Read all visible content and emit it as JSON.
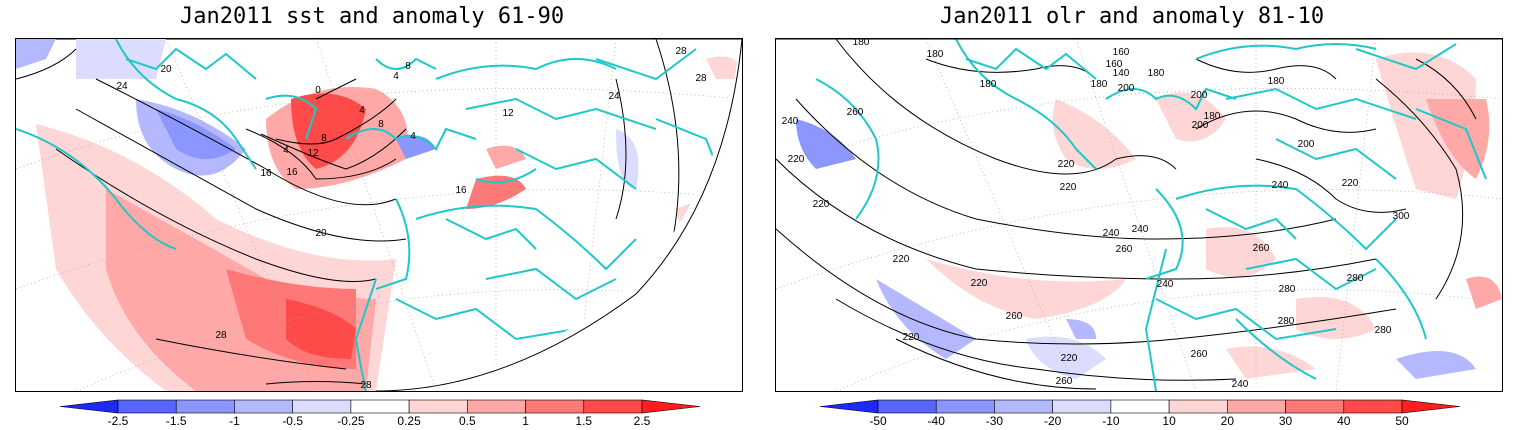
{
  "panels": [
    {
      "title": "Jan2011 sst and anomaly 61-90",
      "contour_labels": [
        "24",
        "20",
        "16",
        "20",
        "28",
        "28",
        "28",
        "24",
        "28",
        "0",
        "4",
        "4",
        "4",
        "8",
        "8",
        "12",
        "12",
        "4",
        "8",
        "16",
        "16"
      ],
      "colorbar": {
        "ticks": [
          "-2.5",
          "-1.5",
          "-1",
          "-0.5",
          "-0.25",
          "0.25",
          "0.5",
          "1",
          "1.5",
          "2.5"
        ],
        "colors": [
          "#1e28ff",
          "#5a64ff",
          "#8c96ff",
          "#b4b9ff",
          "#dcdcff",
          "#ffffff",
          "#ffd6d6",
          "#ffa8a8",
          "#ff7878",
          "#ff4a4a",
          "#ff1e1e"
        ]
      }
    },
    {
      "title": "Jan2011 olr and anomaly 81-10",
      "contour_labels": [
        "180",
        "160",
        "180",
        "160",
        "140",
        "180",
        "180",
        "200",
        "200",
        "180",
        "200",
        "180",
        "220",
        "240",
        "260",
        "240",
        "220",
        "220",
        "220",
        "240",
        "260",
        "260",
        "280",
        "280",
        "240",
        "220",
        "220",
        "260",
        "260",
        "240",
        "280",
        "280",
        "260",
        "220",
        "220",
        "200",
        "220",
        "180",
        "240",
        "300"
      ],
      "colorbar": {
        "ticks": [
          "-50",
          "-40",
          "-30",
          "-20",
          "-10",
          "10",
          "20",
          "30",
          "40",
          "50"
        ],
        "colors": [
          "#1e28ff",
          "#5a64ff",
          "#8c96ff",
          "#b4b9ff",
          "#dcdcff",
          "#ffffff",
          "#ffd6d6",
          "#ffa8a8",
          "#ff7878",
          "#ff4a4a",
          "#ff1e1e"
        ]
      }
    }
  ]
}
